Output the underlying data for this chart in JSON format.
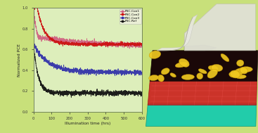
{
  "xlabel": "Illumination time (hrs)",
  "ylabel": "Normalized PCE",
  "xlim": [
    0,
    600
  ],
  "ylim": [
    0.0,
    1.0
  ],
  "xticks": [
    0,
    100,
    200,
    300,
    400,
    500,
    600
  ],
  "yticks": [
    0.0,
    0.2,
    0.4,
    0.6,
    0.8,
    1.0
  ],
  "legend_labels": [
    "PSC-Con1",
    "PSC-Con2",
    "PSC-Con3",
    "PSC-Ref"
  ],
  "line_colors": [
    "#d06080",
    "#cc1111",
    "#3333aa",
    "#111111"
  ],
  "fig_bg": "#c8e07a",
  "plot_bg": "#ddeebb",
  "axis_edge": "#667755"
}
